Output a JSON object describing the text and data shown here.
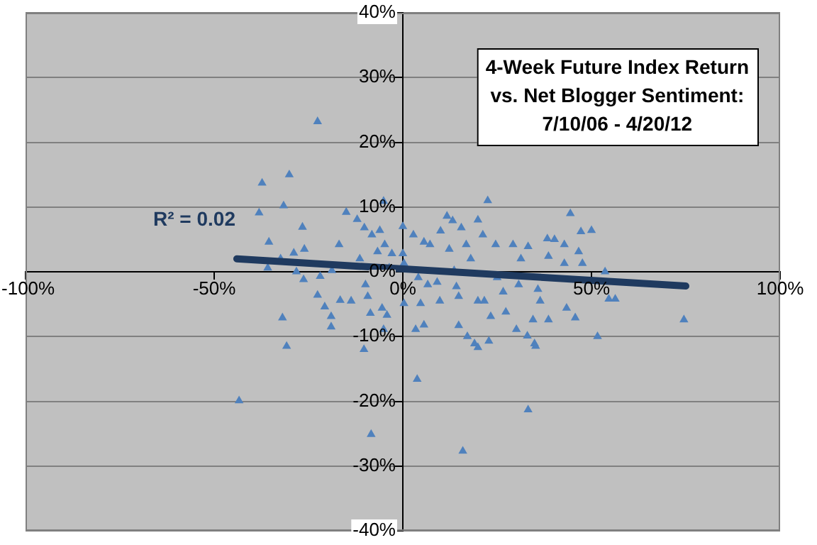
{
  "chart_data": {
    "type": "scatter",
    "title": "4-Week Future Index Return vs. Net Blogger Sentiment: 7/10/06 - 4/20/12",
    "annotations": [
      "R² = 0.02"
    ],
    "xlim": [
      -100,
      100
    ],
    "xticks": [
      {
        "value": -100,
        "label": "-100%"
      },
      {
        "value": -50,
        "label": "-50%"
      },
      {
        "value": 0,
        "label": "0%"
      },
      {
        "value": 50,
        "label": "50%"
      },
      {
        "value": 100,
        "label": "100%"
      }
    ],
    "ylim": [
      -40,
      40
    ],
    "yticks": [
      {
        "value": -40,
        "label": "-40%"
      },
      {
        "value": -30,
        "label": "-30%"
      },
      {
        "value": -20,
        "label": "-20%"
      },
      {
        "value": -10,
        "label": "-10%"
      },
      {
        "value": 0,
        "label": "0%"
      },
      {
        "value": 10,
        "label": "10%"
      },
      {
        "value": 20,
        "label": "20%"
      },
      {
        "value": 30,
        "label": "30%"
      },
      {
        "value": 40,
        "label": "40%"
      }
    ],
    "grid": "y",
    "legend": false,
    "marker": "triangle",
    "series": [
      {
        "color": "#4f81bd",
        "x": [
          -43.4,
          -38.1,
          -37.3,
          -35.5,
          -35.8,
          -31.9,
          -30.8,
          -30.1,
          -31.6,
          -32.4,
          -28.9,
          -28.2,
          -26.6,
          -26.3,
          -26.1,
          -22.6,
          -22.6,
          -21.9,
          -20.7,
          -19.0,
          -19.0,
          -18.8,
          -16.9,
          -16.6,
          -15.0,
          -13.7,
          -12.1,
          -11.4,
          -10.3,
          -10.2,
          -9.9,
          -9.3,
          -8.6,
          -8.4,
          -8.2,
          -6.7,
          -6.1,
          -5.5,
          -5.1,
          -5.1,
          -4.8,
          -4.2,
          -3.6,
          -2.9,
          0,
          0,
          0.3,
          0.3,
          2.8,
          3.4,
          3.8,
          4.1,
          4.7,
          5.6,
          5.6,
          6.6,
          7.2,
          9.1,
          9.8,
          10.0,
          11.7,
          12.3,
          13.2,
          13.6,
          14.2,
          14.8,
          14.8,
          15.5,
          15.9,
          16.8,
          17.1,
          18.0,
          19.0,
          19.9,
          19.9,
          19.9,
          21.2,
          21.6,
          22.5,
          22.8,
          23.3,
          24.6,
          25.0,
          26.6,
          27.3,
          29.2,
          30.1,
          30.7,
          31.3,
          33.0,
          33.2,
          33.2,
          34.5,
          34.9,
          35.2,
          35.8,
          36.4,
          38.3,
          38.6,
          38.6,
          40.2,
          42.8,
          42.8,
          43.4,
          44.4,
          45.7,
          46.6,
          47.2,
          47.6,
          50.0,
          51.6,
          53.6,
          54.6,
          56.3,
          74.5
        ],
        "values": [
          -19.9,
          9.1,
          13.7,
          4.6,
          0.6,
          -7.1,
          -11.5,
          15.0,
          10.2,
          2.0,
          2.9,
          0,
          6.9,
          -1.2,
          3.5,
          23.2,
          -3.6,
          -0.7,
          -5.4,
          -6.9,
          -8.5,
          0.2,
          4.2,
          -4.4,
          9.2,
          -4.5,
          8.1,
          2.0,
          -12.0,
          6.8,
          -2.0,
          -3.8,
          -6.4,
          -25.1,
          5.7,
          3.1,
          6.4,
          -5.6,
          10.9,
          -8.9,
          4.2,
          -6.7,
          0.6,
          2.8,
          7.0,
          2.8,
          1.3,
          -4.9,
          5.7,
          -8.9,
          -16.6,
          -0.9,
          -4.9,
          4.6,
          -8.2,
          -2.0,
          4.2,
          -1.6,
          -4.5,
          6.3,
          8.6,
          3.5,
          7.9,
          0.2,
          -2.3,
          -3.8,
          -8.3,
          6.8,
          -27.7,
          4.2,
          -10.0,
          2.0,
          -11.1,
          -11.7,
          8.0,
          -4.5,
          5.7,
          -4.5,
          11.0,
          -10.7,
          -6.9,
          4.2,
          -0.9,
          -3.1,
          -6.2,
          4.2,
          -8.9,
          -2.0,
          2.0,
          -9.9,
          -21.3,
          3.9,
          -7.4,
          -11.1,
          -11.5,
          -2.7,
          -4.5,
          5.1,
          -7.4,
          2.4,
          5.0,
          4.2,
          1.3,
          -5.6,
          9.0,
          -7.1,
          3.1,
          6.2,
          1.3,
          6.4,
          -10.0,
          0,
          -4.2,
          -4.2,
          -7.4
        ]
      },
      {
        "type": "line",
        "color": "#1f3a5f",
        "marker": "none",
        "x": [
          -44,
          75
        ],
        "values": [
          2.0,
          -2.2
        ]
      }
    ]
  }
}
